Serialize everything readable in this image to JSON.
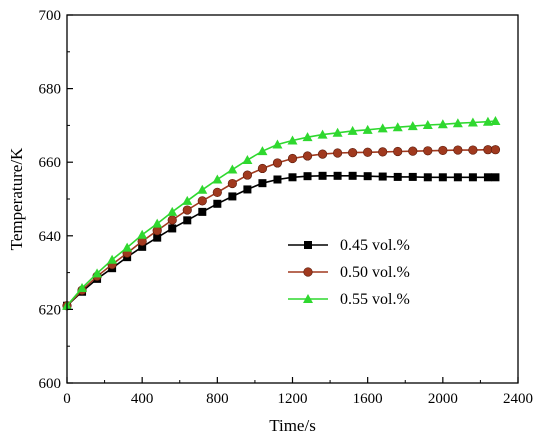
{
  "chart_data": {
    "type": "line",
    "xlabel": "Time/s",
    "ylabel": "Temperature/K",
    "xlim": [
      0,
      2400
    ],
    "ylim": [
      600,
      700
    ],
    "xticks": [
      0,
      400,
      800,
      1200,
      1600,
      2000,
      2400
    ],
    "yticks": [
      600,
      620,
      640,
      660,
      680,
      700
    ],
    "grid": false,
    "legend_position": "center-right",
    "series": [
      {
        "name": "0.45 vol.%",
        "color": "#000000",
        "marker": "square",
        "x": [
          0,
          80,
          160,
          240,
          320,
          400,
          480,
          560,
          640,
          720,
          800,
          880,
          960,
          1040,
          1120,
          1200,
          1280,
          1360,
          1440,
          1520,
          1600,
          1680,
          1760,
          1840,
          1920,
          2000,
          2080,
          2160,
          2240,
          2280
        ],
        "y": [
          621.0,
          624.8,
          628.3,
          631.2,
          634.2,
          637.0,
          639.5,
          642.0,
          644.2,
          646.5,
          648.7,
          650.7,
          652.6,
          654.3,
          655.3,
          655.9,
          656.2,
          656.3,
          656.3,
          656.3,
          656.2,
          656.1,
          656.0,
          656.0,
          655.9,
          655.9,
          655.9,
          655.9,
          655.9,
          655.9
        ]
      },
      {
        "name": "0.50 vol.%",
        "color": "#a0391e",
        "marker": "circle",
        "x": [
          0,
          80,
          160,
          240,
          320,
          400,
          480,
          560,
          640,
          720,
          800,
          880,
          960,
          1040,
          1120,
          1200,
          1280,
          1360,
          1440,
          1520,
          1600,
          1680,
          1760,
          1840,
          1920,
          2000,
          2080,
          2160,
          2240,
          2280
        ],
        "y": [
          621.0,
          625.2,
          629.0,
          632.2,
          635.3,
          638.5,
          641.4,
          644.3,
          647.0,
          649.5,
          651.8,
          654.2,
          656.5,
          658.3,
          659.8,
          661.0,
          661.7,
          662.2,
          662.5,
          662.6,
          662.7,
          662.8,
          662.9,
          663.0,
          663.1,
          663.2,
          663.3,
          663.3,
          663.4,
          663.4
        ]
      },
      {
        "name": "0.55 vol.%",
        "color": "#2fd82f",
        "marker": "triangle",
        "x": [
          0,
          80,
          160,
          240,
          320,
          400,
          480,
          560,
          640,
          720,
          800,
          880,
          960,
          1040,
          1120,
          1200,
          1280,
          1360,
          1440,
          1520,
          1600,
          1680,
          1760,
          1840,
          1920,
          2000,
          2080,
          2160,
          2240,
          2280
        ],
        "y": [
          621.0,
          625.8,
          629.8,
          633.5,
          636.8,
          640.3,
          643.3,
          646.5,
          649.5,
          652.5,
          655.3,
          658.0,
          660.6,
          663.0,
          664.8,
          665.9,
          666.8,
          667.5,
          668.0,
          668.5,
          668.8,
          669.2,
          669.5,
          669.8,
          670.1,
          670.3,
          670.6,
          670.8,
          671.0,
          671.2
        ]
      }
    ]
  }
}
